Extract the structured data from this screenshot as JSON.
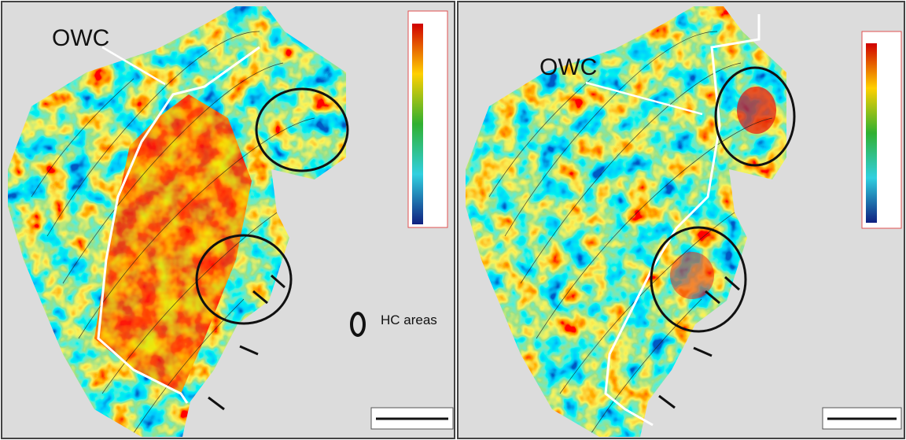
{
  "panels": [
    {
      "label": "OWC"
    },
    {
      "label": "OWC"
    }
  ],
  "legend": {
    "label": "HC areas"
  }
}
